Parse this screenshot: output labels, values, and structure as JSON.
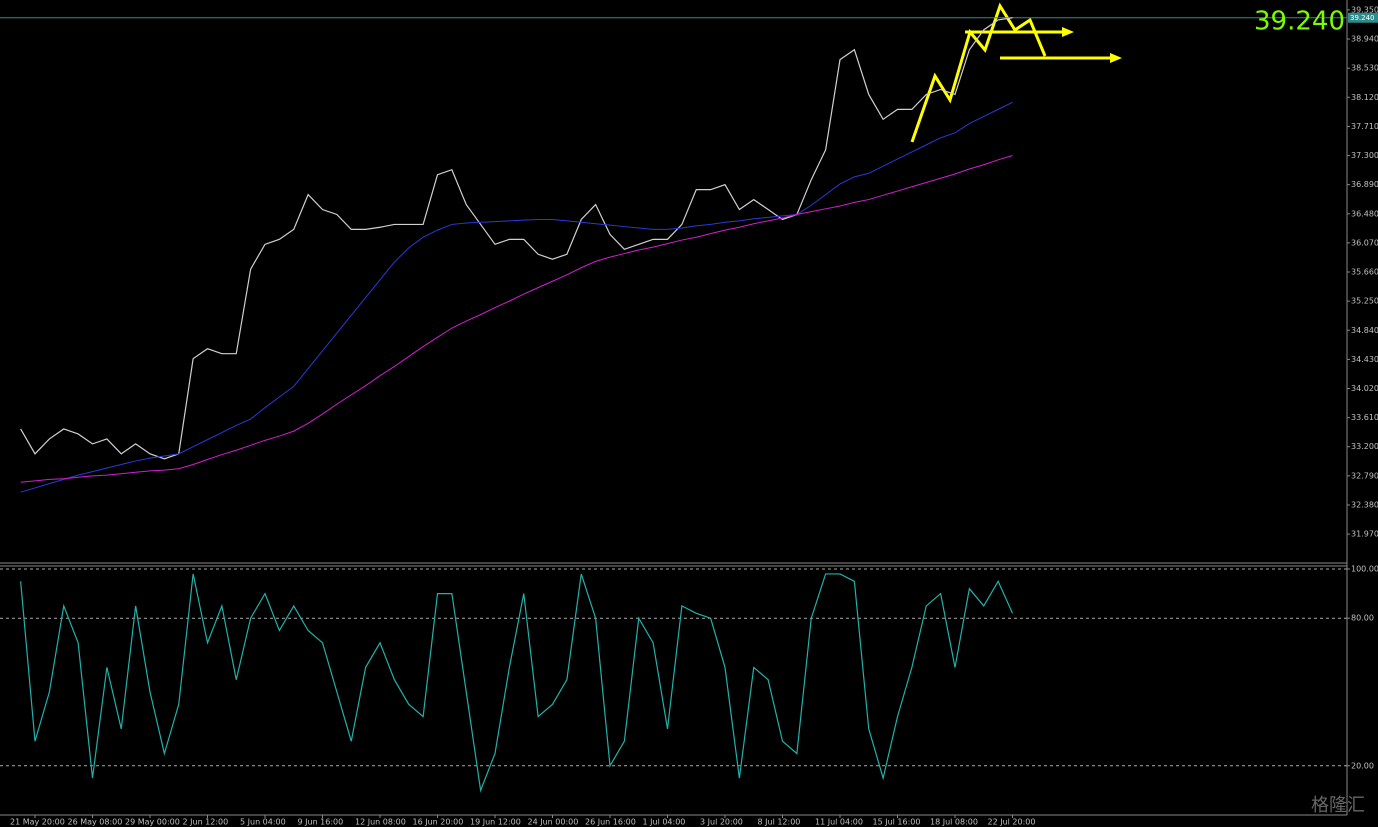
{
  "chart_data": [
    {
      "type": "line",
      "categories": [
        null,
        "21 May 20:00",
        null,
        null,
        null,
        "26 May 08:00",
        null,
        null,
        null,
        "29 May 00:00",
        null,
        null,
        null,
        "2 Jun 12:00",
        null,
        null,
        null,
        "5 Jun 04:00",
        null,
        null,
        null,
        "9 Jun 16:00",
        null,
        null,
        null,
        "12 Jun 08:00",
        null,
        null,
        null,
        "16 Jun 20:00",
        null,
        null,
        null,
        "19 Jun 12:00",
        null,
        null,
        null,
        "24 Jun 00:00",
        null,
        null,
        null,
        "26 Jun 16:00",
        null,
        null,
        null,
        "1 Jul 04:00",
        null,
        null,
        null,
        "3 Jul 20:00",
        null,
        null,
        null,
        "8 Jul 12:00",
        null,
        null,
        null,
        "11 Jul 04:00",
        null,
        null,
        null,
        "15 Jul 16:00",
        null,
        null,
        null,
        "18 Jul 08:00",
        null,
        null,
        null,
        "22 Jul 20:00"
      ],
      "series": [
        {
          "color": "#d0d0d0",
          "values": [
            33.45,
            33.1,
            33.31,
            33.45,
            33.38,
            33.24,
            33.31,
            33.1,
            33.24,
            33.1,
            33.03,
            33.1,
            34.44,
            34.58,
            34.51,
            34.51,
            35.7,
            36.05,
            36.12,
            36.26,
            36.75,
            36.54,
            36.47,
            36.26,
            36.26,
            36.29,
            36.33,
            36.33,
            36.33,
            37.03,
            37.1,
            36.61,
            36.33,
            36.05,
            36.12,
            36.12,
            35.91,
            35.84,
            35.91,
            36.4,
            36.61,
            36.19,
            35.98,
            36.05,
            36.12,
            36.12,
            36.33,
            36.82,
            36.82,
            36.89,
            36.54,
            36.68,
            36.54,
            36.4,
            36.47,
            36.96,
            37.38,
            38.65,
            38.79,
            38.16,
            37.81,
            37.95,
            37.95,
            38.16,
            38.23,
            38.16,
            38.79,
            39.07,
            39.21,
            39.24
          ]
        },
        {
          "color": "#2a3ad8",
          "values": [
            32.56,
            32.62,
            32.68,
            32.74,
            32.8,
            32.85,
            32.9,
            32.95,
            33.0,
            33.04,
            33.07,
            33.1,
            33.2,
            33.3,
            33.4,
            33.5,
            33.59,
            33.75,
            33.9,
            34.05,
            34.3,
            34.55,
            34.8,
            35.05,
            35.3,
            35.55,
            35.8,
            36.0,
            36.15,
            36.25,
            36.33,
            36.35,
            36.36,
            36.37,
            36.38,
            36.39,
            36.4,
            36.4,
            36.38,
            36.36,
            36.34,
            36.32,
            36.3,
            36.28,
            36.26,
            36.26,
            36.28,
            36.31,
            36.33,
            36.36,
            36.38,
            36.41,
            36.43,
            36.45,
            36.47,
            36.6,
            36.75,
            36.9,
            37.0,
            37.05,
            37.15,
            37.25,
            37.35,
            37.45,
            37.55,
            37.62,
            37.75,
            37.85,
            37.95,
            38.05
          ]
        },
        {
          "color": "#d020d0",
          "values": [
            32.7,
            32.72,
            32.74,
            32.75,
            32.77,
            32.79,
            32.8,
            32.82,
            32.84,
            32.86,
            32.87,
            32.89,
            32.95,
            33.02,
            33.09,
            33.15,
            33.22,
            33.29,
            33.35,
            33.42,
            33.53,
            33.66,
            33.8,
            33.93,
            34.06,
            34.2,
            34.33,
            34.47,
            34.61,
            34.74,
            34.87,
            34.97,
            35.06,
            35.16,
            35.25,
            35.35,
            35.44,
            35.53,
            35.62,
            35.72,
            35.81,
            35.87,
            35.92,
            35.97,
            36.01,
            36.06,
            36.11,
            36.15,
            36.2,
            36.25,
            36.29,
            36.34,
            36.38,
            36.42,
            36.47,
            36.51,
            36.55,
            36.59,
            36.64,
            36.68,
            36.74,
            36.8,
            36.86,
            36.92,
            36.98,
            37.04,
            37.11,
            37.17,
            37.24,
            37.3
          ]
        }
      ],
      "ylim": [
        31.577,
        39.49
      ],
      "yticks": [
        {
          "value": 39.35,
          "label": "39.350"
        },
        {
          "value": 38.94,
          "label": "38.940"
        },
        {
          "value": 38.53,
          "label": "38.530"
        },
        {
          "value": 38.12,
          "label": "38.120"
        },
        {
          "value": 37.71,
          "label": "37.710"
        },
        {
          "value": 37.3,
          "label": "37.300"
        },
        {
          "value": 36.89,
          "label": "36.890"
        },
        {
          "value": 36.48,
          "label": "36.480"
        },
        {
          "value": 36.07,
          "label": "36.070"
        },
        {
          "value": 35.66,
          "label": "35.660"
        },
        {
          "value": 35.25,
          "label": "35.250"
        },
        {
          "value": 34.84,
          "label": "34.840"
        },
        {
          "value": 34.43,
          "label": "34.430"
        },
        {
          "value": 34.02,
          "label": "34.020"
        },
        {
          "value": 33.61,
          "label": "33.610"
        },
        {
          "value": 33.2,
          "label": "33.200"
        },
        {
          "value": 32.79,
          "label": "32.790"
        },
        {
          "value": 32.38,
          "label": "32.380"
        },
        {
          "value": 31.97,
          "label": "31.970"
        }
      ],
      "price_label": {
        "value": 39.24,
        "label": "39.240"
      },
      "grid": false
    },
    {
      "type": "line",
      "series": [
        {
          "color": "#20b2aa",
          "values": [
            95,
            30,
            50,
            85,
            70,
            15,
            60,
            35,
            85,
            50,
            25,
            45,
            98,
            70,
            85,
            55,
            80,
            90,
            75,
            85,
            75,
            70,
            50,
            30,
            60,
            70,
            55,
            45,
            40,
            90,
            90,
            50,
            10,
            25,
            60,
            90,
            40,
            45,
            55,
            98,
            80,
            20,
            30,
            80,
            70,
            35,
            85,
            82,
            80,
            60,
            15,
            60,
            55,
            30,
            25,
            80,
            98,
            98,
            95,
            35,
            15,
            40,
            60,
            85,
            90,
            60,
            92,
            85,
            95,
            82
          ]
        }
      ],
      "ylim": [
        0,
        100
      ],
      "yticks": [
        {
          "value": 100,
          "label": "100.00"
        },
        {
          "value": 80,
          "label": "80.00"
        },
        {
          "value": 20,
          "label": "20.00"
        }
      ],
      "grid": true
    }
  ],
  "watermark": "格隆汇"
}
